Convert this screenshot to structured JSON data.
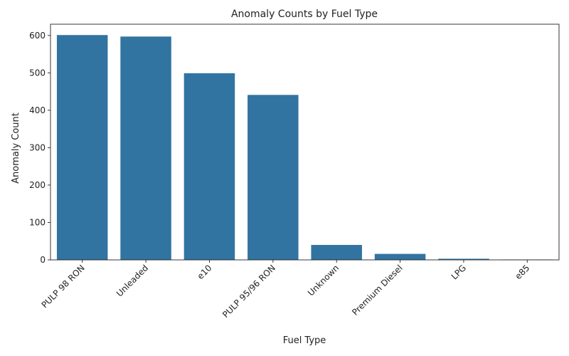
{
  "chart_data": {
    "type": "bar",
    "title": "Anomaly Counts by Fuel Type",
    "xlabel": "Fuel Type",
    "ylabel": "Anomaly Count",
    "categories": [
      "PULP 98 RON",
      "Unleaded",
      "e10",
      "PULP 95/96 RON",
      "Unknown",
      "Premium Diesel",
      "LPG",
      "e85"
    ],
    "values": [
      601,
      597,
      499,
      441,
      40,
      16,
      3,
      1
    ],
    "ylim": [
      0,
      630
    ],
    "yticks": [
      0,
      100,
      200,
      300,
      400,
      500,
      600
    ],
    "grid": false,
    "bar_color": "#3274a1",
    "x_tick_rotation_deg": 45
  }
}
